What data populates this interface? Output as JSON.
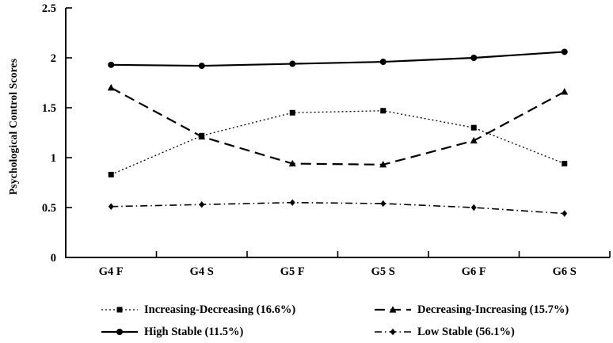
{
  "chart_data": {
    "type": "line",
    "title": "",
    "xlabel": "",
    "ylabel": "Psychological Control Scores",
    "ylim": [
      0,
      2.5
    ],
    "yticks": [
      0,
      0.5,
      1,
      1.5,
      2,
      2.5
    ],
    "ytick_labels": [
      "0",
      "0.5",
      "1",
      "1.5",
      "2",
      "2.5"
    ],
    "categories": [
      "G4 F",
      "G4 S",
      "G5 F",
      "G5 S",
      "G6 F",
      "G6 S"
    ],
    "grid": false,
    "legend_position": "bottom",
    "line_color": "#000000",
    "background_color": "#ffffff",
    "series": [
      {
        "name": "increasing-decreasing",
        "label": "Increasing-Decreasing (16.6%)",
        "line_style": "dotted",
        "marker": "square",
        "values": [
          0.83,
          1.22,
          1.45,
          1.47,
          1.3,
          0.94
        ]
      },
      {
        "name": "decreasing-increasing",
        "label": "Decreasing-Increasing (15.7%)",
        "line_style": "dashed",
        "marker": "triangle",
        "values": [
          1.7,
          1.21,
          0.94,
          0.93,
          1.17,
          1.66
        ]
      },
      {
        "name": "high-stable",
        "label": "High Stable (11.5%)",
        "line_style": "solid",
        "marker": "circle",
        "values": [
          1.93,
          1.92,
          1.94,
          1.96,
          2.0,
          2.06
        ]
      },
      {
        "name": "low-stable",
        "label": "Low Stable (56.1%)",
        "line_style": "dashdot",
        "marker": "diamond",
        "values": [
          0.51,
          0.53,
          0.55,
          0.54,
          0.5,
          0.44
        ]
      }
    ],
    "legend_order": [
      0,
      1,
      2,
      3
    ]
  }
}
